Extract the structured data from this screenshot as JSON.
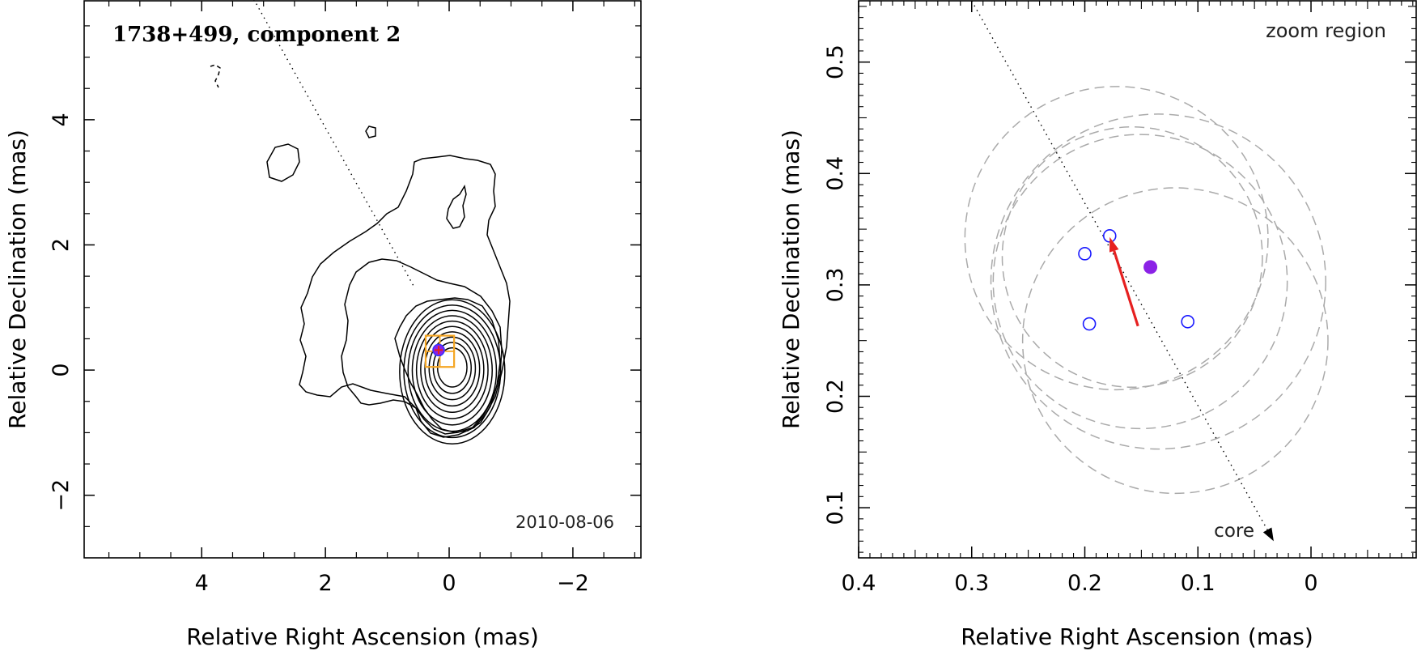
{
  "chart_data": [
    {
      "type": "contour",
      "title": "1738+499, component 2",
      "date": "2010-08-06",
      "xlabel": "Relative Right Ascension (mas)",
      "ylabel": "Relative Declination (mas)",
      "xlim": [
        5.9,
        -3.1
      ],
      "ylim": [
        -3.0,
        5.9
      ],
      "x_ticks": [
        4,
        2,
        0,
        -2
      ],
      "y_ticks": [
        -2,
        0,
        2,
        4
      ],
      "x_tick_labels": [
        "4",
        "2",
        "0",
        "−2"
      ],
      "y_tick_labels": [
        "−2",
        "0",
        "2",
        "4"
      ],
      "component_position": {
        "x": 0.17,
        "y": 0.32
      },
      "zoom_box": {
        "x": [
          -0.08,
          0.38
        ],
        "y": [
          0.05,
          0.55
        ]
      },
      "direction_line": {
        "from": [
          3.2,
          6.0
        ],
        "to": [
          0.55,
          1.3
        ]
      },
      "num_core_contours": 10,
      "colors": {
        "box": "#f5a623",
        "marker": "#8b22e6",
        "cross": "#e62020",
        "contour": "#000000"
      }
    },
    {
      "type": "scatter",
      "title": "zoom region",
      "annotation": "core",
      "xlabel": "Relative Right Ascension (mas)",
      "ylabel": "Relative Declination (mas)",
      "xlim": [
        0.4,
        -0.093
      ],
      "ylim": [
        0.055,
        0.555
      ],
      "x_ticks": [
        0.4,
        0.3,
        0.2,
        0.1,
        0.0
      ],
      "y_ticks": [
        0.1,
        0.2,
        0.3,
        0.4,
        0.5
      ],
      "x_tick_labels": [
        "0.4",
        "0.3",
        "0.2",
        "0.1",
        "0"
      ],
      "y_tick_labels": [
        "0.1",
        "0.2",
        "0.3",
        "0.4",
        "0.5"
      ],
      "open_points": [
        {
          "x": 0.178,
          "y": 0.344
        },
        {
          "x": 0.2,
          "y": 0.328
        },
        {
          "x": 0.196,
          "y": 0.265
        },
        {
          "x": 0.109,
          "y": 0.267
        }
      ],
      "filled_point": {
        "x": 0.142,
        "y": 0.316
      },
      "arrow": {
        "from": [
          0.153,
          0.263
        ],
        "to": [
          0.178,
          0.343
        ]
      },
      "dotted_line": {
        "from": [
          0.3,
          0.555
        ],
        "to": [
          0.033,
          0.07
        ]
      },
      "error_circles": [
        {
          "x": 0.172,
          "y": 0.342,
          "r": 0.134
        },
        {
          "x": 0.12,
          "y": 0.25,
          "r": 0.135
        },
        {
          "x": 0.135,
          "y": 0.303,
          "r": 0.148
        },
        {
          "x": 0.158,
          "y": 0.325,
          "r": 0.115
        },
        {
          "x": 0.151,
          "y": 0.303,
          "r": 0.13
        }
      ],
      "colors": {
        "open_points": "#1a1aff",
        "filled_point": "#8b22e6",
        "arrow": "#e62020",
        "circles": "#aaaaaa"
      }
    }
  ]
}
